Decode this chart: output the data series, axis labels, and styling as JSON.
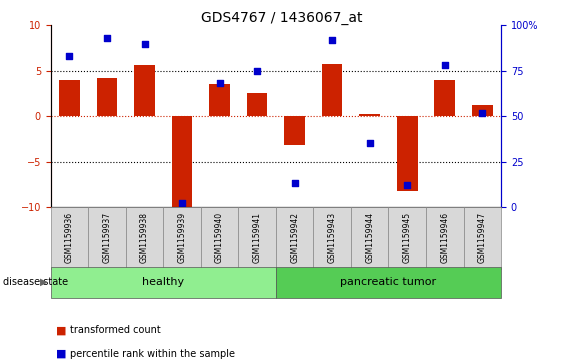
{
  "title": "GDS4767 / 1436067_at",
  "samples": [
    "GSM1159936",
    "GSM1159937",
    "GSM1159938",
    "GSM1159939",
    "GSM1159940",
    "GSM1159941",
    "GSM1159942",
    "GSM1159943",
    "GSM1159944",
    "GSM1159945",
    "GSM1159946",
    "GSM1159947"
  ],
  "bar_values": [
    4.0,
    4.2,
    5.6,
    -10.0,
    3.5,
    2.5,
    -3.2,
    5.8,
    0.2,
    -8.2,
    4.0,
    1.2
  ],
  "percentile_values": [
    83,
    93,
    90,
    2,
    68,
    75,
    13,
    92,
    35,
    12,
    78,
    52
  ],
  "bar_color": "#cc2200",
  "dot_color": "#0000cc",
  "ylim_left": [
    -10,
    10
  ],
  "ylim_right": [
    0,
    100
  ],
  "yticks_left": [
    -10,
    -5,
    0,
    5,
    10
  ],
  "yticks_right": [
    0,
    25,
    50,
    75,
    100
  ],
  "ytick_labels_right": [
    "0",
    "25",
    "50",
    "75",
    "100%"
  ],
  "dotted_lines_black": [
    -5,
    5
  ],
  "groups": [
    {
      "label": "healthy",
      "start": 0,
      "end": 5,
      "color": "#90ee90"
    },
    {
      "label": "pancreatic tumor",
      "start": 6,
      "end": 11,
      "color": "#55cc55"
    }
  ],
  "disease_state_label": "disease state",
  "legend_items": [
    {
      "label": "transformed count",
      "color": "#cc2200"
    },
    {
      "label": "percentile rank within the sample",
      "color": "#0000cc"
    }
  ],
  "bar_width": 0.55,
  "title_fontsize": 10,
  "tick_fontsize": 7,
  "label_fontsize": 5.5,
  "group_fontsize": 8,
  "axis_color_left": "#cc2200",
  "axis_color_right": "#0000cc",
  "bg_color": "#ffffff"
}
